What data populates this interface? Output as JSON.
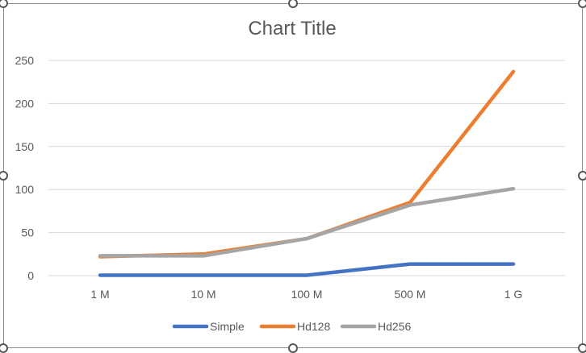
{
  "chart_data": {
    "type": "line",
    "title": "Chart Title",
    "categories": [
      "1 M",
      "10 M",
      "100 M",
      "500 M",
      "1 G"
    ],
    "ylim": [
      0,
      250
    ],
    "yticks": [
      0,
      50,
      100,
      150,
      200,
      250
    ],
    "grid": true,
    "legend_position": "bottom",
    "series": [
      {
        "name": "Simple",
        "color": "#4472c4",
        "values": [
          0.5,
          0.5,
          0.5,
          13.5,
          13.5
        ]
      },
      {
        "name": "Hd128",
        "color": "#ed7d31",
        "values": [
          22,
          25,
          43,
          85,
          237
        ]
      },
      {
        "name": "Hd256",
        "color": "#a5a5a5",
        "values": [
          23,
          23,
          43,
          82,
          101
        ]
      }
    ]
  }
}
